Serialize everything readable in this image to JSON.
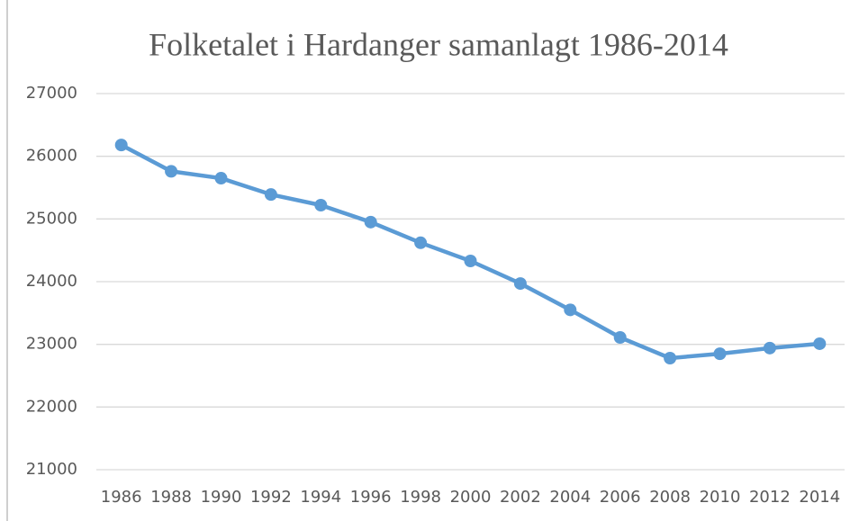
{
  "chart_data": {
    "type": "line",
    "title": "Folketalet i Hardanger samanlagt 1986-2014",
    "categories": [
      "1986",
      "1988",
      "1990",
      "1992",
      "1994",
      "1996",
      "1998",
      "2000",
      "2002",
      "2004",
      "2006",
      "2008",
      "2010",
      "2012",
      "2014"
    ],
    "values": [
      26180,
      25760,
      25650,
      25390,
      25220,
      24950,
      24620,
      24330,
      23970,
      23550,
      23110,
      22780,
      22850,
      22940,
      23010
    ],
    "color": "#5b9bd5",
    "ylim": [
      21000,
      27000
    ],
    "yticks": [
      21000,
      22000,
      23000,
      24000,
      25000,
      26000,
      27000
    ],
    "grid": true
  }
}
